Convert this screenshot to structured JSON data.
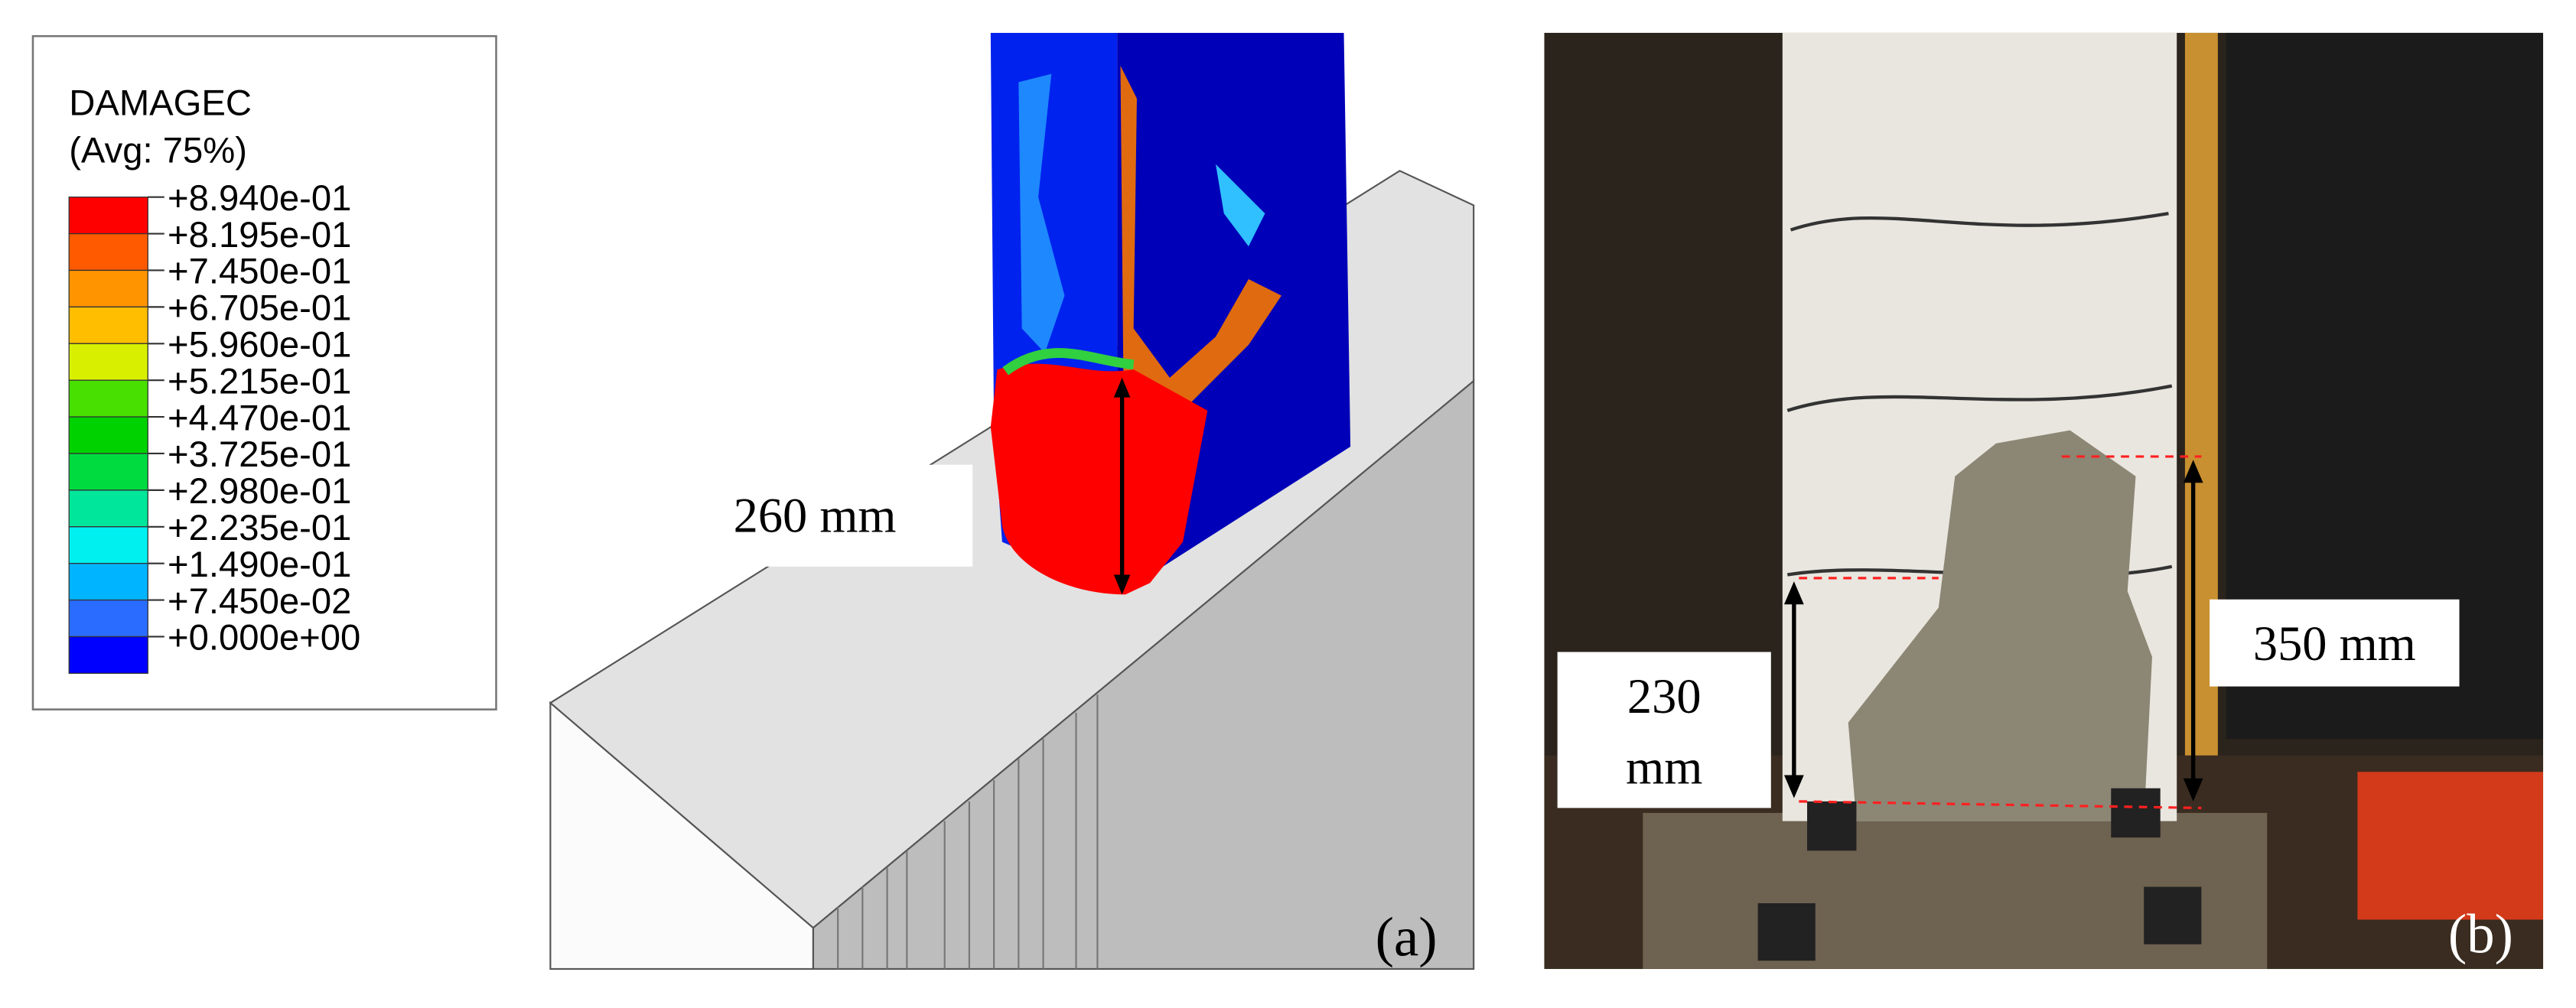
{
  "legend": {
    "title": "DAMAGEC",
    "subtitle": "(Avg: 75%)",
    "labels": [
      "+8.940e-01",
      "+8.195e-01",
      "+7.450e-01",
      "+6.705e-01",
      "+5.960e-01",
      "+5.215e-01",
      "+4.470e-01",
      "+3.725e-01",
      "+2.980e-01",
      "+2.235e-01",
      "+1.490e-01",
      "+7.450e-02",
      "+0.000e+00"
    ],
    "colors": [
      "#ff0000",
      "#ff5a00",
      "#ff9400",
      "#ffbe00",
      "#d8f000",
      "#48e000",
      "#00d200",
      "#00dc40",
      "#00e69a",
      "#00f0f0",
      "#00b4ff",
      "#2a6cff",
      "#0000ff"
    ]
  },
  "panel_a": {
    "annotation": "260 mm",
    "label": "(a)"
  },
  "panel_b": {
    "annotation_1": "350 mm",
    "annotation_2_line_1": "230",
    "annotation_2_line_2": "mm",
    "label": "(b)"
  }
}
